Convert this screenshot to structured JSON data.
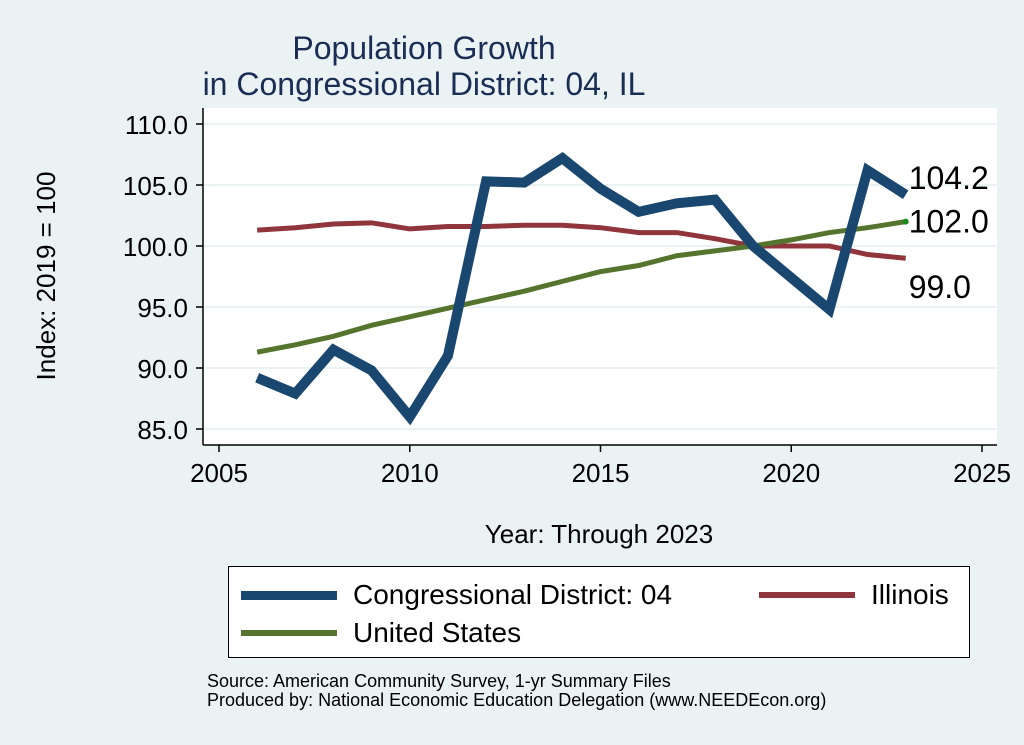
{
  "chart_data": {
    "type": "line",
    "title": "Population Growth",
    "subtitle": "in Congressional District: 04, IL",
    "xlabel": "Year: Through 2023",
    "ylabel": "Index: 2019 = 100",
    "xlim": [
      2005,
      2025
    ],
    "ylim": [
      85,
      110
    ],
    "xticks": [
      2005,
      2010,
      2015,
      2020,
      2025
    ],
    "xtick_labels": [
      "2005",
      "2010",
      "2015",
      "2020",
      "2025"
    ],
    "yticks": [
      85,
      90,
      95,
      100,
      105,
      110
    ],
    "ytick_labels": [
      "85.0",
      "90.0",
      "95.0",
      "100.0",
      "105.0",
      "110.0"
    ],
    "grid": true,
    "legend_position": "bottom",
    "x": [
      2006,
      2007,
      2008,
      2009,
      2010,
      2011,
      2012,
      2013,
      2014,
      2015,
      2016,
      2017,
      2018,
      2019,
      2020,
      2021,
      2022,
      2023
    ],
    "series": [
      {
        "name": "Congressional District: 04",
        "color": "#1a476f",
        "end_label": "104.2",
        "values": [
          89.2,
          87.9,
          91.5,
          89.8,
          86.0,
          91.0,
          105.3,
          105.2,
          107.2,
          104.7,
          102.8,
          103.5,
          103.8,
          100.0,
          97.4,
          94.8,
          106.2,
          104.2
        ]
      },
      {
        "name": "Illinois",
        "color": "#90353b",
        "end_label": "99.0",
        "values": [
          101.3,
          101.5,
          101.8,
          101.9,
          101.4,
          101.6,
          101.6,
          101.7,
          101.7,
          101.5,
          101.1,
          101.1,
          100.6,
          100.0,
          100.0,
          100.0,
          99.3,
          99.0
        ]
      },
      {
        "name": "United States",
        "color": "#55752f",
        "end_label": "102.0",
        "values": [
          91.3,
          91.9,
          92.6,
          93.5,
          94.2,
          94.9,
          95.6,
          96.3,
          97.1,
          97.9,
          98.4,
          99.2,
          99.6,
          100.0,
          100.5,
          101.1,
          101.5,
          102.0
        ]
      }
    ]
  },
  "footer": {
    "source": "Source: American Community Survey, 1-yr Summary Files",
    "produced": "Produced by: National Economic Education Delegation (www.NEEDEcon.org)"
  }
}
